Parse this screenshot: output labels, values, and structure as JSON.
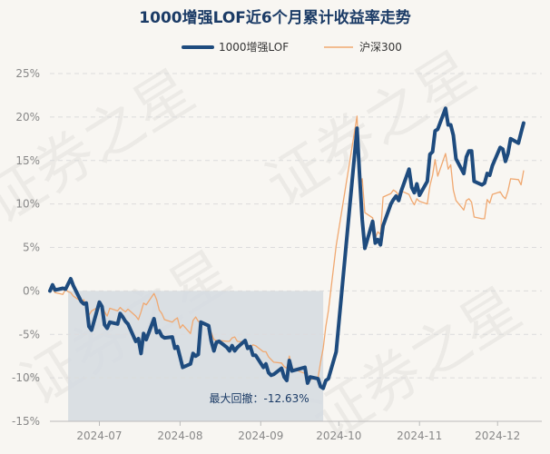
{
  "chart_data": {
    "type": "line",
    "title": "1000增强LOF近6个月累计收益率走势",
    "legend_position": "top-center",
    "grid": true,
    "ylim": [
      -15,
      25
    ],
    "yticks": [
      "25%",
      "20%",
      "15%",
      "10%",
      "5%",
      "0%",
      "-5%",
      "-10%",
      "-15%"
    ],
    "ytick_values": [
      25,
      20,
      15,
      10,
      5,
      0,
      -5,
      -10,
      -15
    ],
    "xlim": [
      "2024-06-12",
      "2024-12-18"
    ],
    "xticks": [
      {
        "date": "2024-07-01",
        "label": "2024-07"
      },
      {
        "date": "2024-08-01",
        "label": "2024-08"
      },
      {
        "date": "2024-09-01",
        "label": "2024-09"
      },
      {
        "date": "2024-10-01",
        "label": "2024-10"
      },
      {
        "date": "2024-11-01",
        "label": "2024-11"
      },
      {
        "date": "2024-12-01",
        "label": "2024-12"
      }
    ],
    "series": [
      {
        "name": "1000增强LOF",
        "color": "#1e4b7e",
        "points": [
          [
            "2024-06-12",
            0
          ],
          [
            "2024-06-13",
            0.7
          ],
          [
            "2024-06-14",
            0.1
          ],
          [
            "2024-06-17",
            0.3
          ],
          [
            "2024-06-18",
            0.2
          ],
          [
            "2024-06-19",
            0.8
          ],
          [
            "2024-06-20",
            1.4
          ],
          [
            "2024-06-21",
            0.6
          ],
          [
            "2024-06-24",
            -1.2
          ],
          [
            "2024-06-25",
            -1.5
          ],
          [
            "2024-06-26",
            -1.4
          ],
          [
            "2024-06-27",
            -4.1
          ],
          [
            "2024-06-28",
            -4.5
          ],
          [
            "2024-07-01",
            -1.3
          ],
          [
            "2024-07-02",
            -1.8
          ],
          [
            "2024-07-03",
            -3.9
          ],
          [
            "2024-07-04",
            -4.3
          ],
          [
            "2024-07-05",
            -3.6
          ],
          [
            "2024-07-08",
            -3.8
          ],
          [
            "2024-07-09",
            -2.6
          ],
          [
            "2024-07-10",
            -3.0
          ],
          [
            "2024-07-11",
            -3.5
          ],
          [
            "2024-07-12",
            -3.8
          ],
          [
            "2024-07-15",
            -5.8
          ],
          [
            "2024-07-16",
            -5.5
          ],
          [
            "2024-07-17",
            -7.2
          ],
          [
            "2024-07-18",
            -4.9
          ],
          [
            "2024-07-19",
            -5.6
          ],
          [
            "2024-07-22",
            -3.2
          ],
          [
            "2024-07-23",
            -4.8
          ],
          [
            "2024-07-24",
            -4.6
          ],
          [
            "2024-07-25",
            -5.2
          ],
          [
            "2024-07-26",
            -5.4
          ],
          [
            "2024-07-29",
            -5.3
          ],
          [
            "2024-07-30",
            -6.6
          ],
          [
            "2024-07-31",
            -6.4
          ],
          [
            "2024-08-01",
            -7.6
          ],
          [
            "2024-08-02",
            -8.8
          ],
          [
            "2024-08-05",
            -8.4
          ],
          [
            "2024-08-06",
            -7.2
          ],
          [
            "2024-08-07",
            -7.5
          ],
          [
            "2024-08-08",
            -7.3
          ],
          [
            "2024-08-09",
            -3.6
          ],
          [
            "2024-08-12",
            -4.0
          ],
          [
            "2024-08-13",
            -5.8
          ],
          [
            "2024-08-14",
            -6.9
          ],
          [
            "2024-08-15",
            -5.9
          ],
          [
            "2024-08-16",
            -5.8
          ],
          [
            "2024-08-19",
            -6.5
          ],
          [
            "2024-08-20",
            -6.9
          ],
          [
            "2024-08-21",
            -6.3
          ],
          [
            "2024-08-22",
            -6.9
          ],
          [
            "2024-08-23",
            -6.5
          ],
          [
            "2024-08-26",
            -5.7
          ],
          [
            "2024-08-27",
            -6.6
          ],
          [
            "2024-08-28",
            -6.4
          ],
          [
            "2024-08-29",
            -7.4
          ],
          [
            "2024-08-30",
            -7.4
          ],
          [
            "2024-09-02",
            -8.8
          ],
          [
            "2024-09-03",
            -8.4
          ],
          [
            "2024-09-04",
            -9.4
          ],
          [
            "2024-09-05",
            -9.7
          ],
          [
            "2024-09-06",
            -9.6
          ],
          [
            "2024-09-09",
            -8.9
          ],
          [
            "2024-09-10",
            -9.9
          ],
          [
            "2024-09-11",
            -10.3
          ],
          [
            "2024-09-12",
            -8.0
          ],
          [
            "2024-09-13",
            -9.2
          ],
          [
            "2024-09-18",
            -8.8
          ],
          [
            "2024-09-19",
            -10.6
          ],
          [
            "2024-09-20",
            -9.9
          ],
          [
            "2024-09-23",
            -10.1
          ],
          [
            "2024-09-24",
            -11.0
          ],
          [
            "2024-09-25",
            -11.2
          ],
          [
            "2024-09-26",
            -10.3
          ],
          [
            "2024-09-27",
            -10.1
          ],
          [
            "2024-09-30",
            -7.0
          ],
          [
            "2024-10-08",
            18.7
          ],
          [
            "2024-10-09",
            13.1
          ],
          [
            "2024-10-10",
            8.2
          ],
          [
            "2024-10-11",
            4.9
          ],
          [
            "2024-10-14",
            8.0
          ],
          [
            "2024-10-15",
            5.5
          ],
          [
            "2024-10-16",
            5.9
          ],
          [
            "2024-10-17",
            5.3
          ],
          [
            "2024-10-18",
            7.5
          ],
          [
            "2024-10-21",
            10.0
          ],
          [
            "2024-10-22",
            10.5
          ],
          [
            "2024-10-23",
            10.9
          ],
          [
            "2024-10-24",
            10.4
          ],
          [
            "2024-10-25",
            11.5
          ],
          [
            "2024-10-28",
            14.0
          ],
          [
            "2024-10-29",
            11.9
          ],
          [
            "2024-10-30",
            11.3
          ],
          [
            "2024-10-31",
            12.3
          ],
          [
            "2024-11-01",
            11.0
          ],
          [
            "2024-11-04",
            12.6
          ],
          [
            "2024-11-05",
            15.7
          ],
          [
            "2024-11-06",
            16.0
          ],
          [
            "2024-11-07",
            18.4
          ],
          [
            "2024-11-08",
            18.6
          ],
          [
            "2024-11-11",
            21.0
          ],
          [
            "2024-11-12",
            19.1
          ],
          [
            "2024-11-13",
            19.1
          ],
          [
            "2024-11-14",
            17.9
          ],
          [
            "2024-11-15",
            15.2
          ],
          [
            "2024-11-18",
            13.5
          ],
          [
            "2024-11-19",
            15.4
          ],
          [
            "2024-11-20",
            16.1
          ],
          [
            "2024-11-21",
            16.1
          ],
          [
            "2024-11-22",
            12.6
          ],
          [
            "2024-11-25",
            12.2
          ],
          [
            "2024-11-26",
            12.4
          ],
          [
            "2024-11-27",
            13.5
          ],
          [
            "2024-11-28",
            13.3
          ],
          [
            "2024-11-29",
            14.4
          ],
          [
            "2024-12-02",
            16.5
          ],
          [
            "2024-12-03",
            16.3
          ],
          [
            "2024-12-04",
            14.9
          ],
          [
            "2024-12-05",
            15.8
          ],
          [
            "2024-12-06",
            17.5
          ],
          [
            "2024-12-09",
            17.0
          ],
          [
            "2024-12-10",
            18.2
          ],
          [
            "2024-12-11",
            19.3
          ]
        ]
      },
      {
        "name": "沪深300",
        "color": "#f0a870",
        "points": [
          [
            "2024-06-12",
            0
          ],
          [
            "2024-06-13",
            0.3
          ],
          [
            "2024-06-14",
            -0.2
          ],
          [
            "2024-06-17",
            -0.4
          ],
          [
            "2024-06-18",
            0.2
          ],
          [
            "2024-06-19",
            -0.1
          ],
          [
            "2024-06-20",
            -0.2
          ],
          [
            "2024-06-21",
            -0.6
          ],
          [
            "2024-06-24",
            -1.2
          ],
          [
            "2024-06-25",
            -1.0
          ],
          [
            "2024-06-26",
            -1.8
          ],
          [
            "2024-06-27",
            -2.8
          ],
          [
            "2024-06-28",
            -2.3
          ],
          [
            "2024-07-01",
            -1.8
          ],
          [
            "2024-07-02",
            -1.6
          ],
          [
            "2024-07-03",
            -2.4
          ],
          [
            "2024-07-04",
            -2.9
          ],
          [
            "2024-07-05",
            -2.0
          ],
          [
            "2024-07-08",
            -2.3
          ],
          [
            "2024-07-09",
            -1.9
          ],
          [
            "2024-07-10",
            -2.2
          ],
          [
            "2024-07-11",
            -2.4
          ],
          [
            "2024-07-12",
            -2.1
          ],
          [
            "2024-07-15",
            -2.9
          ],
          [
            "2024-07-16",
            -3.3
          ],
          [
            "2024-07-17",
            -2.4
          ],
          [
            "2024-07-18",
            -1.4
          ],
          [
            "2024-07-19",
            -1.6
          ],
          [
            "2024-07-22",
            -0.3
          ],
          [
            "2024-07-23",
            -1.0
          ],
          [
            "2024-07-24",
            -2.2
          ],
          [
            "2024-07-25",
            -2.6
          ],
          [
            "2024-07-26",
            -3.3
          ],
          [
            "2024-07-29",
            -3.6
          ],
          [
            "2024-07-30",
            -3.3
          ],
          [
            "2024-07-31",
            -3.1
          ],
          [
            "2024-08-01",
            -4.3
          ],
          [
            "2024-08-02",
            -3.9
          ],
          [
            "2024-08-05",
            -4.9
          ],
          [
            "2024-08-06",
            -3.4
          ],
          [
            "2024-08-07",
            -3.0
          ],
          [
            "2024-08-08",
            -3.5
          ],
          [
            "2024-08-09",
            -3.6
          ],
          [
            "2024-08-12",
            -4.1
          ],
          [
            "2024-08-13",
            -4.8
          ],
          [
            "2024-08-14",
            -5.6
          ],
          [
            "2024-08-15",
            -5.7
          ],
          [
            "2024-08-16",
            -5.7
          ],
          [
            "2024-08-19",
            -5.8
          ],
          [
            "2024-08-20",
            -5.8
          ],
          [
            "2024-08-21",
            -5.4
          ],
          [
            "2024-08-22",
            -5.3
          ],
          [
            "2024-08-23",
            -5.8
          ],
          [
            "2024-08-26",
            -5.9
          ],
          [
            "2024-08-27",
            -6.2
          ],
          [
            "2024-08-28",
            -6.5
          ],
          [
            "2024-08-29",
            -6.2
          ],
          [
            "2024-08-30",
            -6.3
          ],
          [
            "2024-09-02",
            -7.0
          ],
          [
            "2024-09-03",
            -7.0
          ],
          [
            "2024-09-04",
            -7.6
          ],
          [
            "2024-09-05",
            -7.9
          ],
          [
            "2024-09-06",
            -8.2
          ],
          [
            "2024-09-09",
            -8.3
          ],
          [
            "2024-09-10",
            -8.7
          ],
          [
            "2024-09-11",
            -8.9
          ],
          [
            "2024-09-12",
            -7.5
          ],
          [
            "2024-09-13",
            -8.9
          ],
          [
            "2024-09-18",
            -9.5
          ],
          [
            "2024-09-19",
            -9.8
          ],
          [
            "2024-09-20",
            -10.2
          ],
          [
            "2024-09-23",
            -10.0
          ],
          [
            "2024-09-24",
            -8.2
          ],
          [
            "2024-09-25",
            -6.6
          ],
          [
            "2024-09-26",
            -4.1
          ],
          [
            "2024-09-27",
            -2.3
          ],
          [
            "2024-09-30",
            5.2
          ],
          [
            "2024-10-08",
            20.1
          ],
          [
            "2024-10-09",
            12.0
          ],
          [
            "2024-10-10",
            12.9
          ],
          [
            "2024-10-11",
            9.0
          ],
          [
            "2024-10-14",
            8.4
          ],
          [
            "2024-10-15",
            6.1
          ],
          [
            "2024-10-16",
            6.8
          ],
          [
            "2024-10-17",
            6.5
          ],
          [
            "2024-10-18",
            10.8
          ],
          [
            "2024-10-21",
            11.2
          ],
          [
            "2024-10-22",
            11.6
          ],
          [
            "2024-10-23",
            11.4
          ],
          [
            "2024-10-24",
            11.0
          ],
          [
            "2024-10-25",
            11.5
          ],
          [
            "2024-10-28",
            11.1
          ],
          [
            "2024-10-29",
            10.4
          ],
          [
            "2024-10-30",
            9.9
          ],
          [
            "2024-10-31",
            10.6
          ],
          [
            "2024-11-01",
            10.3
          ],
          [
            "2024-11-04",
            10.0
          ],
          [
            "2024-11-05",
            12.1
          ],
          [
            "2024-11-06",
            13.3
          ],
          [
            "2024-11-07",
            15.1
          ],
          [
            "2024-11-08",
            13.2
          ],
          [
            "2024-11-11",
            15.8
          ],
          [
            "2024-11-12",
            14.0
          ],
          [
            "2024-11-13",
            14.5
          ],
          [
            "2024-11-14",
            11.6
          ],
          [
            "2024-11-15",
            10.4
          ],
          [
            "2024-11-18",
            9.3
          ],
          [
            "2024-11-19",
            10.4
          ],
          [
            "2024-11-20",
            10.6
          ],
          [
            "2024-11-21",
            10.2
          ],
          [
            "2024-11-22",
            8.5
          ],
          [
            "2024-11-25",
            8.3
          ],
          [
            "2024-11-26",
            8.3
          ],
          [
            "2024-11-27",
            10.5
          ],
          [
            "2024-11-28",
            10.1
          ],
          [
            "2024-11-29",
            11.1
          ],
          [
            "2024-12-02",
            11.4
          ],
          [
            "2024-12-03",
            10.9
          ],
          [
            "2024-12-04",
            10.6
          ],
          [
            "2024-12-05",
            11.5
          ],
          [
            "2024-12-06",
            12.9
          ],
          [
            "2024-12-09",
            12.8
          ],
          [
            "2024-12-10",
            12.2
          ],
          [
            "2024-12-11",
            13.8
          ]
        ]
      }
    ],
    "max_drawdown": {
      "label": "最大回撤：-12.63%",
      "start": "2024-06-19",
      "end": "2024-09-25",
      "color": "#d5dbe1"
    },
    "watermark": "证券之星"
  }
}
